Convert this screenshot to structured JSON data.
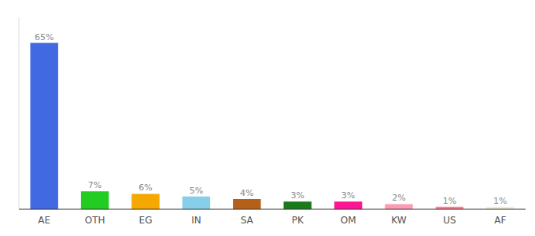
{
  "chart_data": {
    "type": "bar",
    "categories": [
      "AE",
      "OTH",
      "EG",
      "IN",
      "SA",
      "PK",
      "OM",
      "KW",
      "US",
      "AF"
    ],
    "values": [
      65,
      7,
      6,
      5,
      4,
      3,
      3,
      2,
      1,
      1
    ],
    "value_labels": [
      "65%",
      "7%",
      "6%",
      "5%",
      "4%",
      "3%",
      "3%",
      "2%",
      "1%",
      "1%"
    ],
    "data_labels": true,
    "colors": [
      "#4169e1",
      "#22cc22",
      "#f5a800",
      "#87ceeb",
      "#b5601a",
      "#1a7a1a",
      "#ff1493",
      "#ff9ab5",
      "#ff8090",
      "#f0f0d8"
    ],
    "ylim": [
      0,
      75
    ],
    "tick_labels": "x",
    "grid": false
  }
}
